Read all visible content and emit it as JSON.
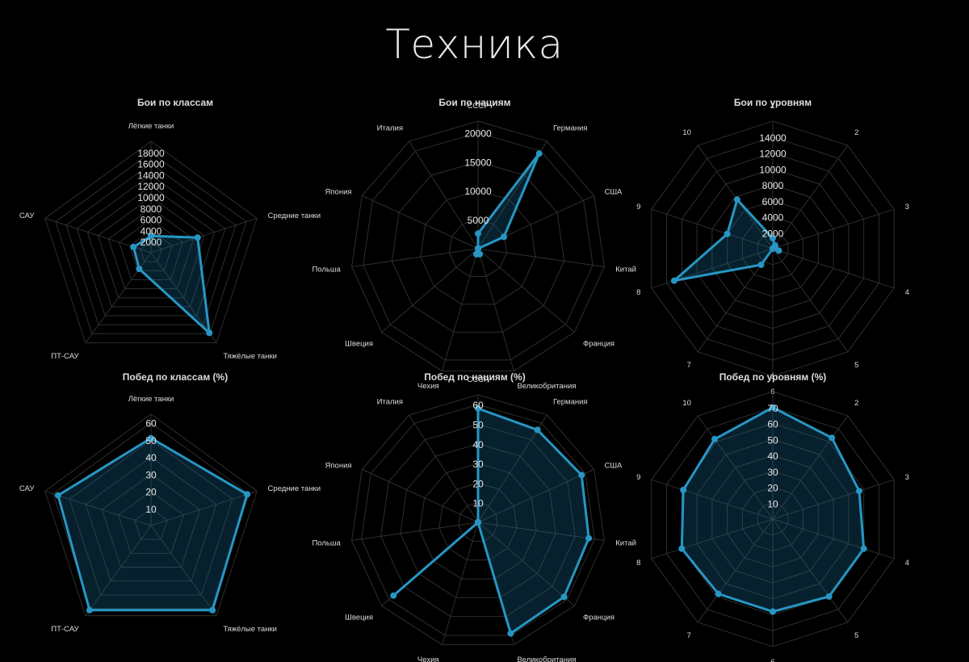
{
  "page": {
    "title": "Техника"
  },
  "colors": {
    "background": "#000000",
    "grid": "#2e2e2e",
    "series": "#2796c4",
    "fill": "rgba(23,120,160,0.28)",
    "text": "#dddddd",
    "tick": "#e6e6e6"
  },
  "chart_data": [
    {
      "type": "radar",
      "title": "Бои по классам",
      "categories": [
        "Лёгкие танки",
        "Средние танки",
        "Тяжёлые танки",
        "ПТ-САУ",
        "САУ"
      ],
      "ticks": [
        2000,
        4000,
        6000,
        8000,
        10000,
        12000,
        14000,
        16000,
        18000
      ],
      "max": 20000,
      "values": [
        3000,
        8800,
        17800,
        3600,
        3300
      ],
      "grid": true
    },
    {
      "type": "radar",
      "title": "Бои по нациям",
      "categories": [
        "СССР",
        "Германия",
        "США",
        "Китай",
        "Франция",
        "Великобритания",
        "Чехия",
        "Швеция",
        "Польша",
        "Япония",
        "Италия"
      ],
      "ticks": [
        5000,
        10000,
        15000,
        20000
      ],
      "max": 22000,
      "values": [
        2600,
        19500,
        4900,
        0,
        0,
        1000,
        1000,
        0,
        0,
        0,
        0
      ],
      "grid": true
    },
    {
      "type": "radar",
      "title": "Бои по уровням",
      "categories": [
        "1",
        "2",
        "3",
        "4",
        "5",
        "6",
        "7",
        "8",
        "9",
        "10"
      ],
      "ticks": [
        2000,
        4000,
        6000,
        8000,
        10000,
        12000,
        14000
      ],
      "max": 16000,
      "values": [
        1300,
        500,
        300,
        800,
        0,
        0,
        2500,
        13000,
        6000,
        7600
      ],
      "grid": true
    },
    {
      "type": "radar",
      "title": "Побед по классам (%)",
      "categories": [
        "Лёгкие танки",
        "Средние танки",
        "Тяжёлые танки",
        "ПТ-САУ",
        "САУ"
      ],
      "ticks": [
        10,
        20,
        30,
        40,
        50,
        60
      ],
      "max": 65,
      "values": [
        51,
        59,
        61,
        61,
        57
      ],
      "grid": true
    },
    {
      "type": "radar",
      "title": "Побед по нациям (%)",
      "categories": [
        "СССР",
        "Германия",
        "США",
        "Китай",
        "Франция",
        "Великобритания",
        "Чехия",
        "Швеция",
        "Польша",
        "Япония",
        "Италия"
      ],
      "ticks": [
        10,
        20,
        30,
        40,
        50,
        60
      ],
      "max": 65,
      "values": [
        58,
        56,
        58,
        57,
        58,
        59,
        0,
        57,
        0,
        0,
        0
      ],
      "grid": true
    },
    {
      "type": "radar",
      "title": "Побед по уровням (%)",
      "categories": [
        "1",
        "2",
        "3",
        "4",
        "5",
        "6",
        "7",
        "8",
        "9",
        "10"
      ],
      "ticks": [
        10,
        20,
        30,
        40,
        50,
        60,
        70
      ],
      "max": 80,
      "values": [
        70,
        63,
        57,
        60,
        60,
        58,
        58,
        60,
        59,
        62
      ],
      "grid": true
    }
  ]
}
